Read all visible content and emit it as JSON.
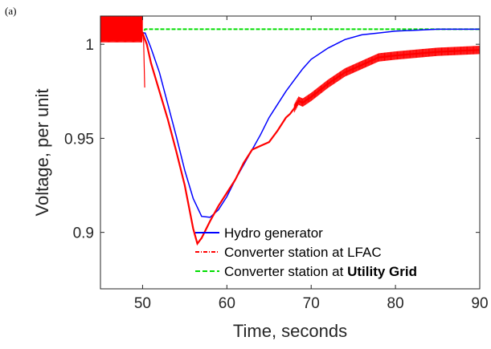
{
  "panel_label": "(a)",
  "chart_data": {
    "type": "line",
    "xlabel": "Time, seconds",
    "ylabel": "Voltage, per unit",
    "xlim": [
      45,
      90
    ],
    "ylim": [
      0.87,
      1.015
    ],
    "xticks": [
      50,
      60,
      70,
      80,
      90
    ],
    "yticks": [
      0.9,
      0.95,
      1
    ],
    "ytick_labels": [
      "0.9",
      "0.95",
      "1"
    ],
    "grid": false,
    "legend_position": "bottom-right",
    "series": [
      {
        "name": "Hydro generator",
        "color": "#0000ff",
        "style": "solid",
        "points": [
          [
            45,
            1.006
          ],
          [
            50,
            1.006
          ],
          [
            50.3,
            1.006
          ],
          [
            51,
            0.998
          ],
          [
            52,
            0.985
          ],
          [
            53,
            0.968
          ],
          [
            54,
            0.951
          ],
          [
            55,
            0.933
          ],
          [
            56,
            0.918
          ],
          [
            57,
            0.9085
          ],
          [
            58,
            0.908
          ],
          [
            59,
            0.912
          ],
          [
            60,
            0.919
          ],
          [
            61,
            0.928
          ],
          [
            62,
            0.936
          ],
          [
            63,
            0.944
          ],
          [
            64,
            0.952
          ],
          [
            65,
            0.961
          ],
          [
            66,
            0.968
          ],
          [
            67,
            0.975
          ],
          [
            68,
            0.981
          ],
          [
            69,
            0.987
          ],
          [
            70,
            0.992
          ],
          [
            72,
            0.998
          ],
          [
            74,
            1.0025
          ],
          [
            76,
            1.005
          ],
          [
            78,
            1.006
          ],
          [
            80,
            1.007
          ],
          [
            85,
            1.008
          ],
          [
            90,
            1.008
          ]
        ]
      },
      {
        "name": "Converter station at LFAC",
        "color": "#ff0000",
        "style": "dashdot",
        "points": [
          [
            45,
            1.006
          ],
          [
            50,
            1.006
          ],
          [
            50.5,
            1.0
          ],
          [
            51,
            0.99
          ],
          [
            52,
            0.975
          ],
          [
            53,
            0.96
          ],
          [
            54,
            0.943
          ],
          [
            55,
            0.925
          ],
          [
            56,
            0.902
          ],
          [
            56.5,
            0.894
          ],
          [
            57,
            0.897
          ],
          [
            58,
            0.906
          ],
          [
            59,
            0.914
          ],
          [
            60,
            0.921
          ],
          [
            61,
            0.928
          ],
          [
            62,
            0.937
          ],
          [
            63,
            0.944
          ],
          [
            64,
            0.946
          ],
          [
            65,
            0.948
          ],
          [
            66,
            0.954
          ],
          [
            67,
            0.961
          ],
          [
            67.5,
            0.963
          ],
          [
            68,
            0.966
          ],
          [
            68.5,
            0.97
          ],
          [
            69,
            0.969
          ],
          [
            70,
            0.972
          ],
          [
            72,
            0.979
          ],
          [
            74,
            0.985
          ],
          [
            76,
            0.989
          ],
          [
            78,
            0.993
          ],
          [
            80,
            0.994
          ],
          [
            85,
            0.996
          ],
          [
            90,
            0.997
          ]
        ]
      },
      {
        "name": "Converter station at",
        "name_bold": "Utility Grid",
        "color": "#00dd00",
        "style": "dashed",
        "points": [
          [
            45,
            1.006
          ],
          [
            50,
            1.006
          ],
          [
            50.3,
            1.008
          ],
          [
            60,
            1.008
          ],
          [
            70,
            1.008
          ],
          [
            80,
            1.008
          ],
          [
            90,
            1.008
          ]
        ]
      }
    ]
  }
}
